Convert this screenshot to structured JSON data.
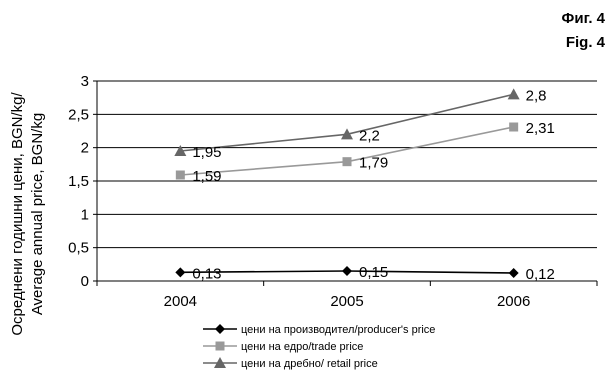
{
  "figure_labels": {
    "bg": "Фиг. 4",
    "en": "Fig. 4"
  },
  "chart_data": {
    "type": "line",
    "ylabel_line1": "Осреднени годишни цени, BGN/kg/",
    "ylabel_line2": "Average annual price, BGN/kg",
    "x": [
      "2004",
      "2005",
      "2006"
    ],
    "ylim": [
      0,
      3
    ],
    "yticks": [
      0,
      0.5,
      1,
      1.5,
      2,
      2.5,
      3
    ],
    "ytick_labels": [
      "0",
      "0,5",
      "1",
      "1,5",
      "2",
      "2,5",
      "3"
    ],
    "grid": true,
    "legend_position": "bottom",
    "series": [
      {
        "name": "цени на производител/producer's price",
        "marker": "diamond",
        "color": "#000000",
        "values": [
          0.13,
          0.15,
          0.12
        ],
        "labels": [
          "0,13",
          "0,15",
          "0,12"
        ]
      },
      {
        "name": "цени на едро/trade price",
        "marker": "square",
        "color": "#999999",
        "values": [
          1.59,
          1.79,
          2.31
        ],
        "labels": [
          "1,59",
          "1,79",
          "2,31"
        ]
      },
      {
        "name": "цени на дребно/ retail price",
        "marker": "triangle",
        "color": "#666666",
        "values": [
          1.95,
          2.2,
          2.8
        ],
        "labels": [
          "1,95",
          "2,2",
          "2,8"
        ]
      }
    ]
  }
}
